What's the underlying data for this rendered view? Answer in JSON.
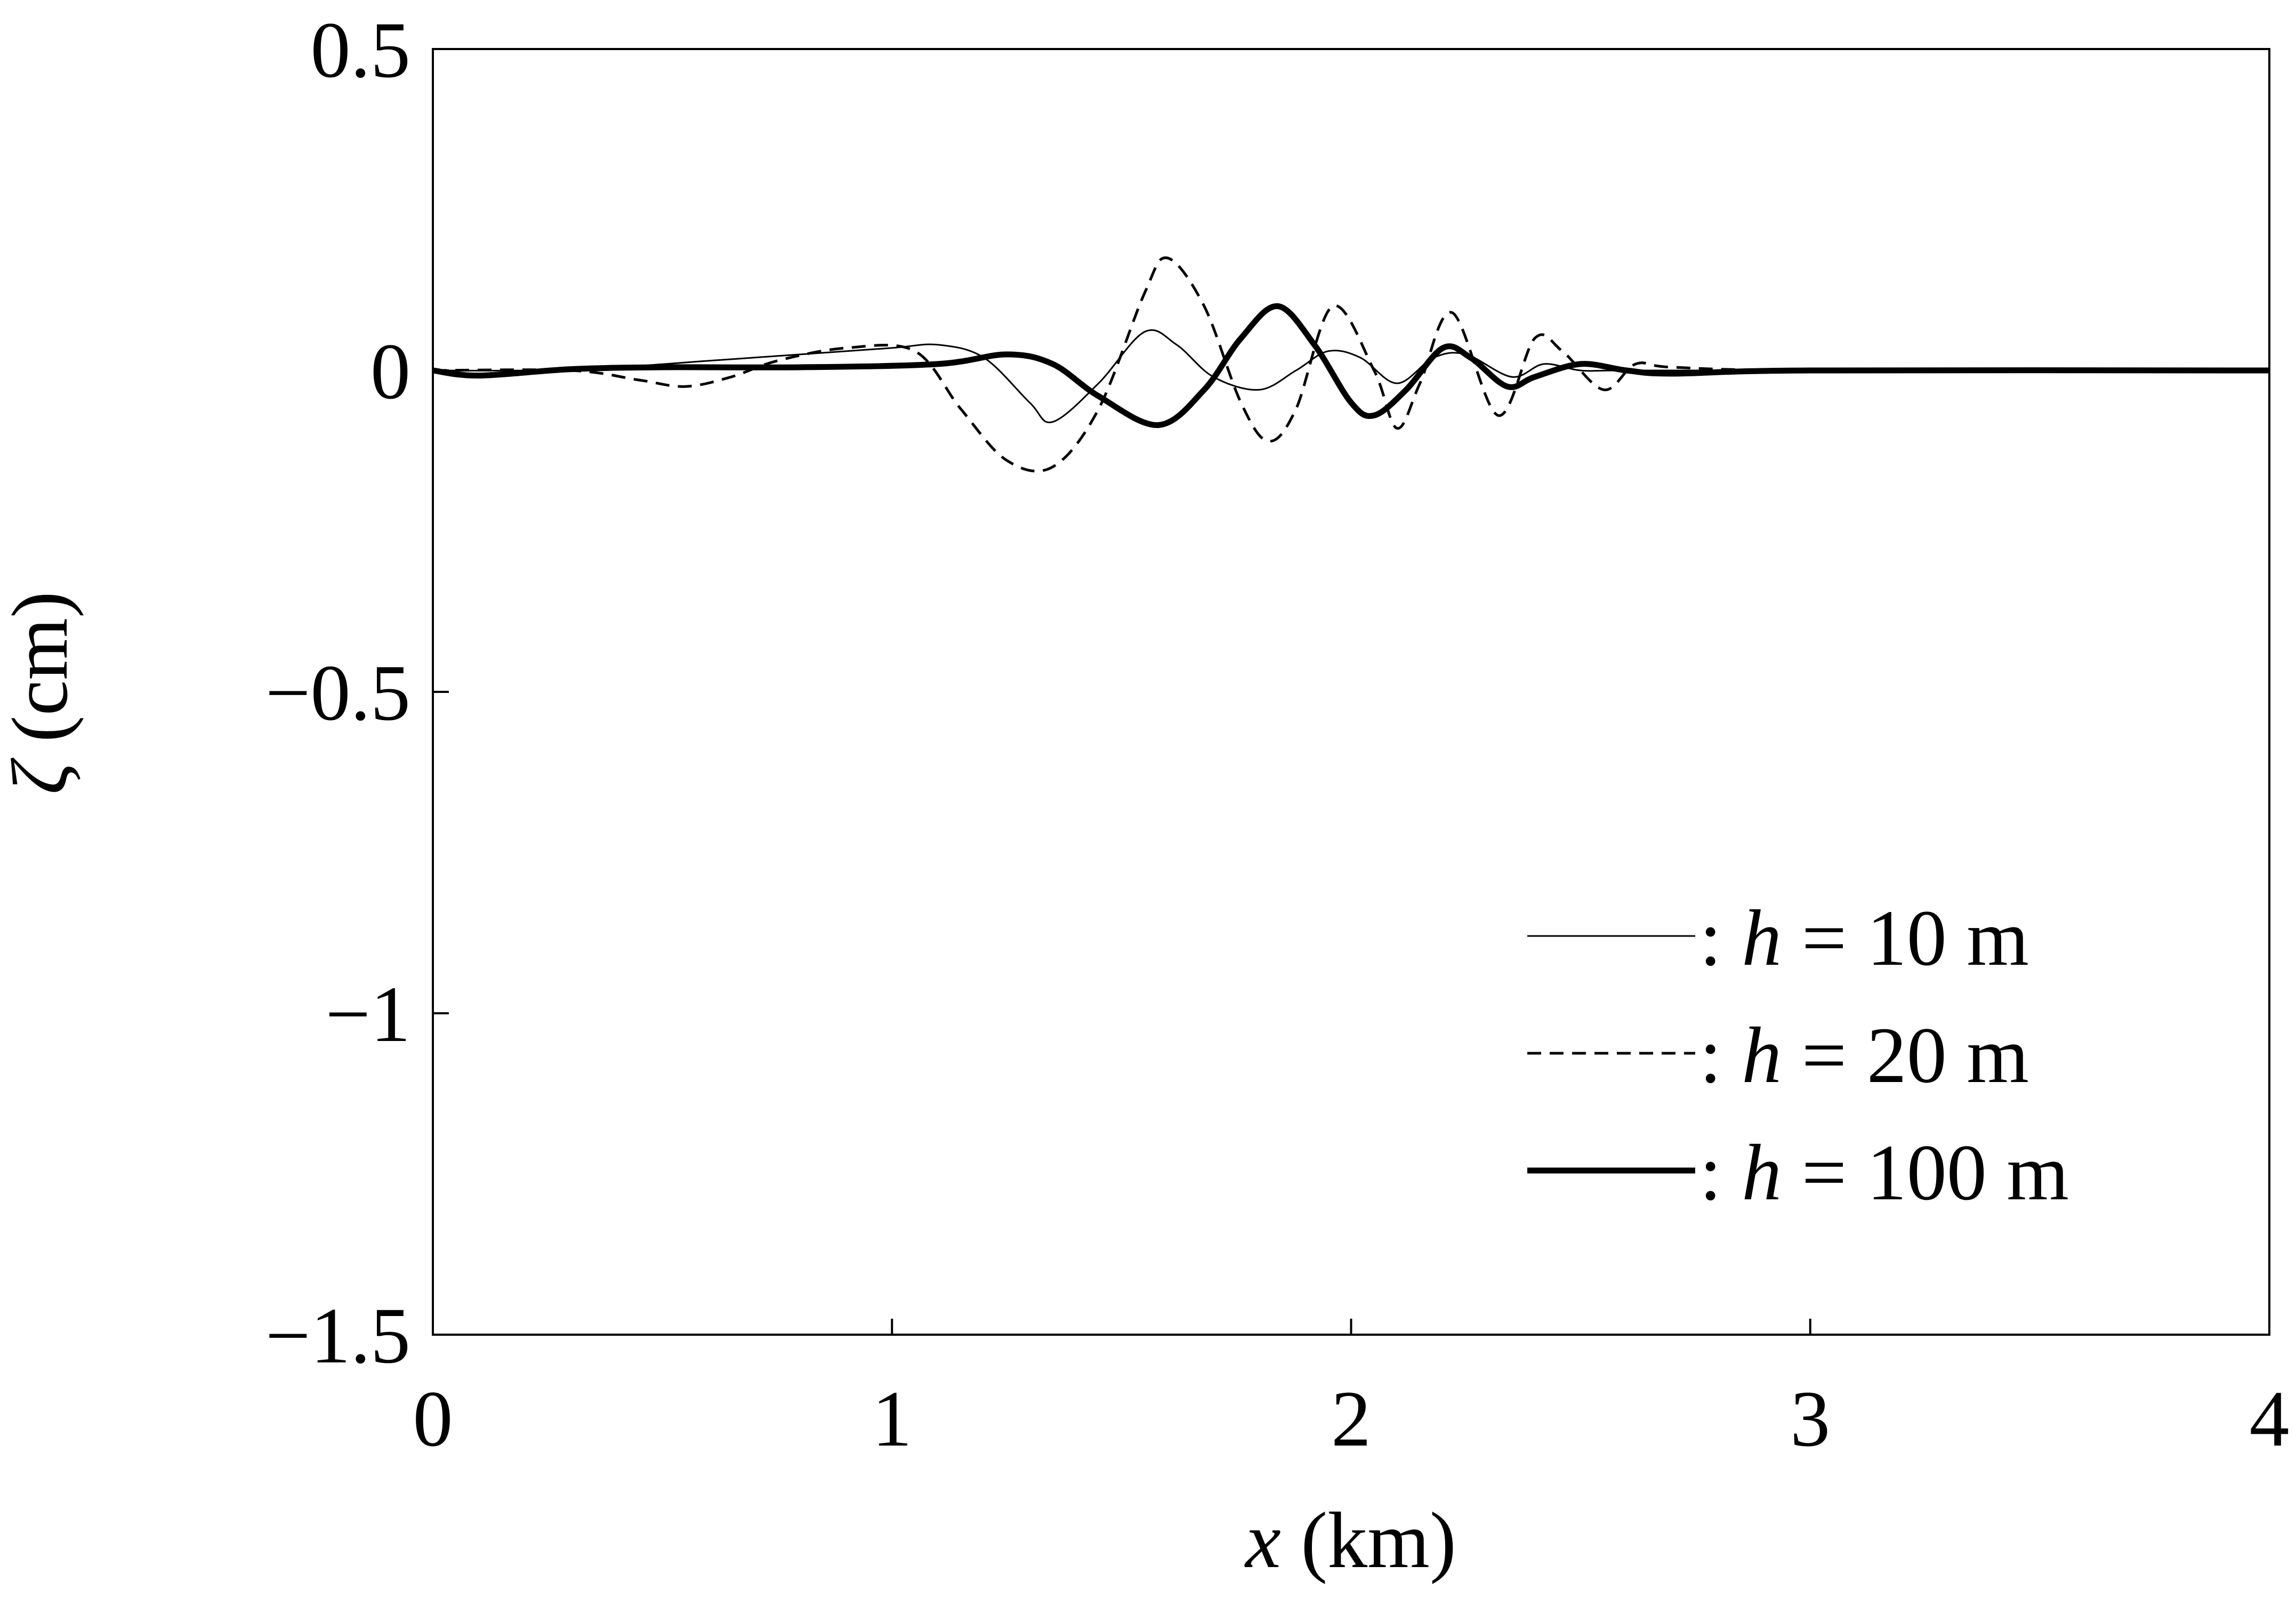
{
  "chart_data": {
    "type": "line",
    "title": "",
    "xlabel_var": "x",
    "xlabel_unit": " (km)",
    "ylabel_var": "ζ",
    "ylabel_unit": " (cm)",
    "xlim": [
      0,
      4
    ],
    "ylim": [
      -1.5,
      0.5
    ],
    "xticks": [
      0,
      1,
      2,
      3,
      4
    ],
    "xtick_labels": [
      "0",
      "1",
      "2",
      "3",
      "4"
    ],
    "yticks": [
      0.5,
      0,
      -0.5,
      -1,
      -1.5
    ],
    "ytick_labels": [
      "0.5",
      "0",
      "−0.5",
      "−1",
      "−1.5"
    ],
    "grid": false,
    "legend_position": "bottom-right",
    "series": [
      {
        "name": "h = 10 m",
        "legend_prefix": ": ",
        "legend_var": "h",
        "legend_rest": " = 10 m",
        "style": "thin-solid",
        "x": [
          0,
          0.2,
          0.4,
          0.6,
          0.8,
          1.0,
          1.1,
          1.2,
          1.3,
          1.35,
          1.45,
          1.55,
          1.62,
          1.7,
          1.8,
          1.88,
          1.95,
          2.02,
          2.1,
          2.18,
          2.25,
          2.35,
          2.42,
          2.5,
          2.6,
          3.0,
          4.0
        ],
        "y": [
          0,
          0,
          0.005,
          0.015,
          0.025,
          0.035,
          0.04,
          0.02,
          -0.05,
          -0.08,
          -0.02,
          0.06,
          0.04,
          -0.01,
          -0.03,
          0.0,
          0.03,
          0.02,
          -0.02,
          0.02,
          0.025,
          -0.01,
          0.01,
          0.0,
          0.0,
          0,
          0
        ]
      },
      {
        "name": "h = 20 m",
        "legend_prefix": ": ",
        "legend_var": "h",
        "legend_rest": " = 20 m",
        "style": "dashed",
        "x": [
          0,
          0.3,
          0.45,
          0.55,
          0.65,
          0.75,
          0.9,
          1.05,
          1.15,
          1.25,
          1.35,
          1.45,
          1.55,
          1.6,
          1.68,
          1.76,
          1.82,
          1.88,
          1.96,
          2.05,
          2.1,
          2.15,
          2.22,
          2.32,
          2.4,
          2.46,
          2.55,
          2.62,
          2.7,
          3.0,
          4.0
        ],
        "y": [
          0,
          0,
          -0.015,
          -0.025,
          -0.01,
          0.015,
          0.035,
          0.03,
          -0.06,
          -0.14,
          -0.15,
          -0.06,
          0.12,
          0.175,
          0.1,
          -0.05,
          -0.11,
          -0.06,
          0.1,
          0.0,
          -0.09,
          -0.02,
          0.09,
          -0.07,
          0.05,
          0.03,
          -0.03,
          0.01,
          0.005,
          0,
          0
        ]
      },
      {
        "name": "h = 100 m",
        "legend_prefix": ": ",
        "legend_var": "h",
        "legend_rest": " = 100 m",
        "style": "thick-solid",
        "x": [
          0,
          0.1,
          0.3,
          0.5,
          0.8,
          1.1,
          1.25,
          1.35,
          1.45,
          1.58,
          1.68,
          1.76,
          1.84,
          1.92,
          2.0,
          2.05,
          2.12,
          2.2,
          2.26,
          2.34,
          2.4,
          2.5,
          2.6,
          2.7,
          3.0,
          4.0
        ],
        "y": [
          0,
          -0.008,
          0.002,
          0.005,
          0.005,
          0.01,
          0.025,
          0.01,
          -0.04,
          -0.085,
          -0.03,
          0.05,
          0.1,
          0.04,
          -0.05,
          -0.07,
          -0.03,
          0.035,
          0.02,
          -0.025,
          -0.01,
          0.01,
          0.0,
          -0.005,
          0,
          0
        ]
      }
    ]
  }
}
